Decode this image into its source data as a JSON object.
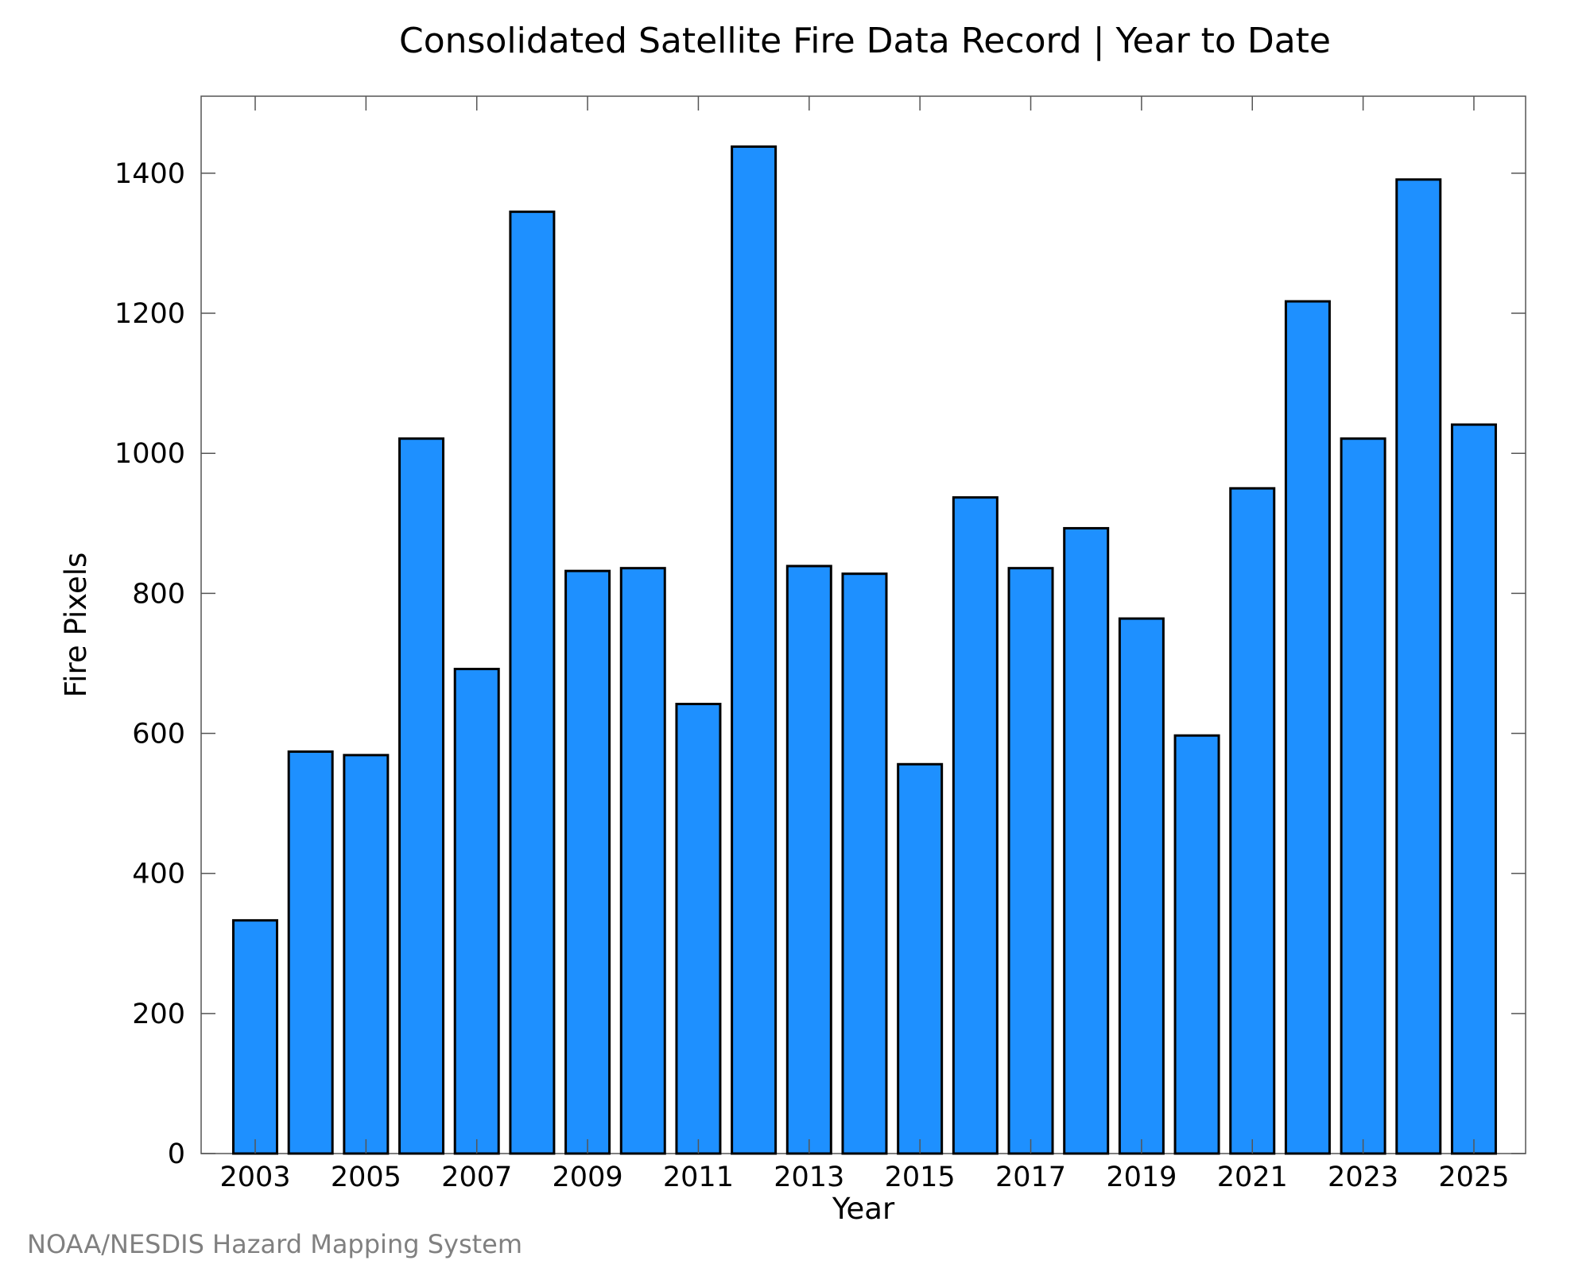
{
  "chart_data": {
    "type": "bar",
    "title": "Consolidated Satellite Fire Data Record | Year to Date",
    "xlabel": "Year",
    "ylabel": "Fire Pixels",
    "categories": [
      "2003",
      "2004",
      "2005",
      "2006",
      "2007",
      "2008",
      "2009",
      "2010",
      "2011",
      "2012",
      "2013",
      "2014",
      "2015",
      "2016",
      "2017",
      "2018",
      "2019",
      "2020",
      "2021",
      "2022",
      "2023",
      "2024",
      "2025"
    ],
    "values": [
      333,
      574,
      569,
      1021,
      692,
      1345,
      832,
      836,
      642,
      1438,
      839,
      828,
      556,
      937,
      836,
      893,
      764,
      597,
      950,
      1217,
      1021,
      1391,
      1041
    ],
    "x_tick_labels": [
      "2003",
      "2005",
      "2007",
      "2009",
      "2011",
      "2013",
      "2015",
      "2017",
      "2019",
      "2021",
      "2023",
      "2025"
    ],
    "y_ticks": [
      0,
      200,
      400,
      600,
      800,
      1000,
      1200,
      1400
    ],
    "ylim": [
      0,
      1510
    ],
    "grid": false,
    "bar_color": "#1e90ff",
    "bar_edge_color": "#000000"
  },
  "credit": "NOAA/NESDIS Hazard Mapping System"
}
